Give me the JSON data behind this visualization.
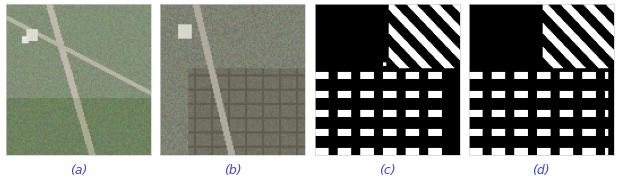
{
  "figure_width": 6.2,
  "figure_height": 1.78,
  "dpi": 100,
  "n_panels": 4,
  "labels": [
    "(a)",
    "(b)",
    "(c)",
    "(d)"
  ],
  "label_color": "#4444cc",
  "label_fontsize": 9,
  "bg_color": "#ffffff",
  "border_color": "#cccccc"
}
